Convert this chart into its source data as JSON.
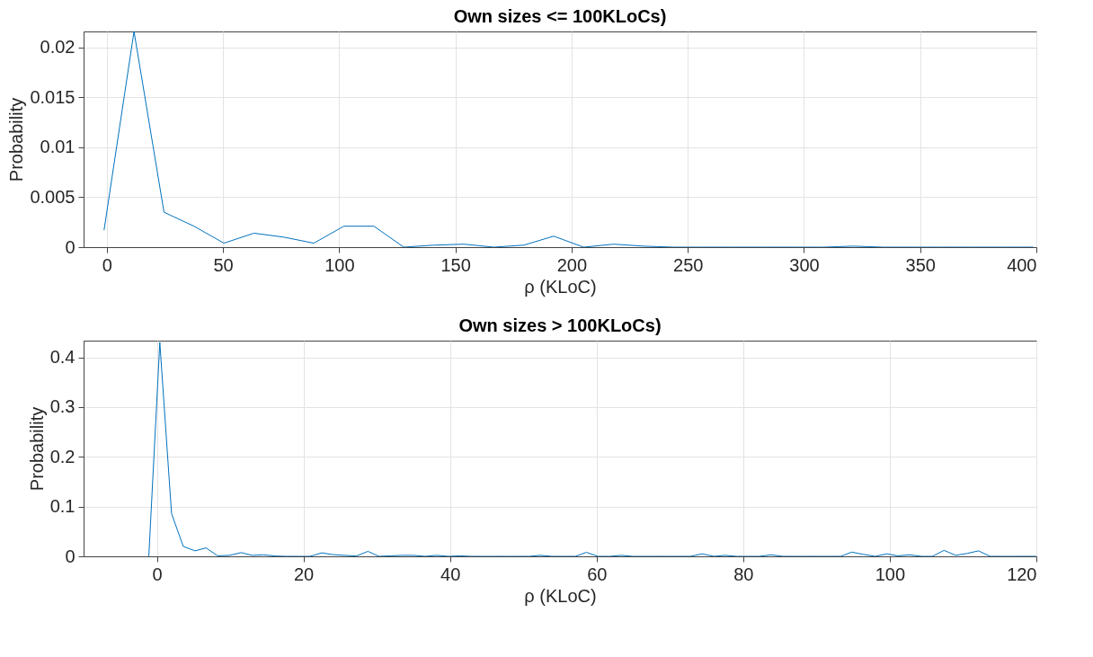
{
  "chart_data": [
    {
      "type": "line",
      "title": "Own sizes <= 100KLoCs)",
      "xlabel": "ρ (KLoC)",
      "ylabel": "Probability",
      "x": [
        -1.2,
        11.7,
        24.6,
        37.5,
        50.4,
        63.3,
        76.2,
        89.1,
        102,
        114.9,
        127.8,
        140.7,
        153.6,
        166.5,
        179.4,
        192.3,
        205.2,
        218.1,
        231,
        243.9,
        256.8,
        269.7,
        282.6,
        295.5,
        308.4,
        321.3,
        334.2,
        347.1,
        360,
        372.9,
        385.8,
        398.7
      ],
      "series": [
        {
          "color": "#0072bd",
          "values": [
            0.0017,
            0.0216,
            0.0035,
            0.0021,
            0.0004,
            0.0014,
            0.001,
            0.0004,
            0.0021,
            0.0021,
            0,
            0.0002,
            0.0003,
            0,
            0.0002,
            0.0011,
            0,
            0.0003,
            0.0001,
            0,
            0,
            0,
            0,
            0,
            0,
            0.0001,
            0,
            0,
            0,
            0,
            0,
            0
          ]
        }
      ],
      "xlim": [
        -10,
        400
      ],
      "ylim": [
        0,
        0.0216
      ],
      "xticks": [
        0,
        50,
        100,
        150,
        200,
        250,
        300,
        350,
        400
      ],
      "yticks": [
        0,
        0.005,
        0.01,
        0.015,
        0.02
      ],
      "grid": true
    },
    {
      "type": "line",
      "title": "Own sizes > 100KLoCs)",
      "xlabel": "ρ (KLoC)",
      "ylabel": "Probability",
      "x": [
        -1.1,
        0.4,
        2.0,
        3.6,
        5.2,
        6.7,
        8.3,
        9.9,
        11.5,
        13.0,
        14.6,
        16.2,
        17.7,
        19.3,
        20.9,
        22.5,
        24.0,
        25.6,
        27.2,
        28.8,
        30.3,
        31.9,
        33.5,
        35.0,
        36.6,
        38.2,
        39.8,
        41.3,
        42.9,
        44.5,
        46.1,
        47.6,
        49.2,
        50.8,
        52.3,
        53.9,
        55.5,
        57.1,
        58.6,
        60.2,
        61.8,
        63.4,
        64.9,
        66.5,
        68.1,
        69.7,
        71.2,
        72.8,
        74.4,
        76.0,
        77.5,
        79.1,
        80.7,
        82.2,
        83.8,
        85.4,
        87.0,
        88.5,
        90.1,
        91.7,
        93.3,
        94.8,
        96.4,
        98.0,
        99.6,
        101.1,
        102.7,
        104.3,
        105.8,
        107.4,
        109.0,
        110.6,
        112.1,
        113.7,
        115.3,
        116.9,
        118.4,
        120.0
      ],
      "series": [
        {
          "color": "#0072bd",
          "values": [
            0,
            0.43,
            0.086,
            0.02,
            0.011,
            0.017,
            0.001,
            0.002,
            0.0075,
            0.002,
            0.003,
            0.0006,
            0,
            0,
            0,
            0.007,
            0.0035,
            0.002,
            0.0006,
            0.01,
            0,
            0.001,
            0.002,
            0.002,
            0,
            0.002,
            0,
            0.001,
            0,
            0,
            0,
            0,
            0,
            0,
            0.002,
            0,
            0,
            0,
            0.008,
            0,
            0,
            0.002,
            0,
            0,
            0,
            0,
            0,
            0,
            0.005,
            0,
            0.002,
            0,
            0,
            0,
            0.003,
            0,
            0,
            0,
            0,
            0,
            0,
            0.0085,
            0.004,
            0,
            0.005,
            0.001,
            0.003,
            0,
            0,
            0.012,
            0.002,
            0.006,
            0.011,
            0,
            0,
            0,
            0,
            0
          ]
        }
      ],
      "xlim": [
        -10,
        120
      ],
      "ylim": [
        0,
        0.4336
      ],
      "xticks": [
        0,
        20,
        40,
        60,
        80,
        100,
        120
      ],
      "yticks": [
        0,
        0.1,
        0.2,
        0.3,
        0.4
      ],
      "grid": true
    }
  ]
}
